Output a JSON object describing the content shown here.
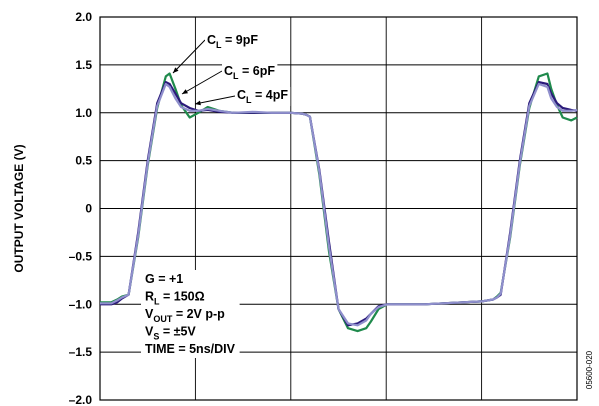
{
  "chart_data": {
    "type": "line",
    "ylabel": "OUTPUT VOLTAGE (V)",
    "xlabel": "",
    "ylim": [
      -2.0,
      2.0
    ],
    "xlim": [
      0,
      50
    ],
    "x_unit": "ns",
    "y_ticks": [
      "2.0",
      "1.5",
      "1.0",
      "0.5",
      "0",
      "–0.5",
      "–1.0",
      "–1.5",
      "–2.0"
    ],
    "y_tick_values": [
      2.0,
      1.5,
      1.0,
      0.5,
      0,
      -0.5,
      -1.0,
      -1.5,
      -2.0
    ],
    "grid": true,
    "conditions": [
      {
        "main": "G = +1",
        "sub": "",
        "rest": ""
      },
      {
        "main": "R",
        "sub": "L",
        "rest": " = 150Ω"
      },
      {
        "main": "V",
        "sub": "OUT",
        "rest": " = 2V p-p"
      },
      {
        "main": "V",
        "sub": "S",
        "rest": " = ±5V"
      },
      {
        "main": "TIME = 5ns/DIV",
        "sub": "",
        "rest": ""
      }
    ],
    "annotations": [
      {
        "main": "C",
        "sub": "L",
        "rest": " = 9pF"
      },
      {
        "main": "C",
        "sub": "L",
        "rest": " = 6pF"
      },
      {
        "main": "C",
        "sub": "L",
        "rest": " = 4pF"
      }
    ],
    "figure_id": "05600-020",
    "series": [
      {
        "color": "#1f8a4c",
        "x": [
          0,
          1.2,
          1.8,
          2.3,
          3.0,
          4.0,
          5.0,
          6.0,
          6.9,
          7.3,
          7.9,
          8.5,
          9.4,
          10.3,
          11.3,
          12.5,
          14.0,
          16.0,
          18.0,
          20.0,
          21.2,
          21.6,
          22.0,
          23.0,
          24.0,
          25.0,
          26.0,
          27.0,
          27.9,
          28.4,
          29.2,
          30.1,
          31.0,
          32.0,
          34.0,
          36.0,
          38.0,
          40.0,
          41.2,
          41.6,
          42.0,
          43.0,
          44.0,
          45.0,
          46.0,
          46.9,
          47.3,
          47.9,
          48.5,
          49.4,
          50.0
        ],
        "y": [
          -0.98,
          -0.98,
          -0.95,
          -0.92,
          -0.9,
          -0.3,
          0.45,
          1.05,
          1.38,
          1.41,
          1.25,
          1.08,
          0.95,
          1.0,
          1.06,
          1.02,
          1.0,
          1.0,
          1.0,
          1.0,
          0.99,
          0.98,
          0.96,
          0.35,
          -0.45,
          -1.05,
          -1.25,
          -1.28,
          -1.25,
          -1.18,
          -1.05,
          -1.0,
          -1.0,
          -1.0,
          -1.0,
          -0.99,
          -0.98,
          -0.97,
          -0.95,
          -0.92,
          -0.88,
          -0.3,
          0.45,
          1.05,
          1.38,
          1.41,
          1.25,
          1.08,
          0.95,
          0.92,
          0.95
        ]
      },
      {
        "color": "#2b1a7a",
        "x": [
          0,
          1.2,
          1.8,
          2.3,
          3.0,
          4.0,
          5.0,
          6.0,
          6.9,
          7.3,
          7.9,
          8.5,
          9.4,
          10.3,
          11.3,
          12.5,
          14.0,
          16.0,
          18.0,
          20.0,
          21.2,
          21.6,
          22.0,
          23.0,
          24.0,
          25.0,
          26.0,
          27.0,
          27.9,
          28.4,
          29.2,
          30.1,
          31.0,
          32.0,
          34.0,
          36.0,
          38.0,
          40.0,
          41.2,
          41.6,
          42.0,
          43.0,
          44.0,
          45.0,
          46.0,
          46.9,
          47.3,
          47.9,
          48.5,
          49.4,
          50.0
        ],
        "y": [
          -1.0,
          -1.0,
          -0.98,
          -0.94,
          -0.9,
          -0.25,
          0.5,
          1.1,
          1.32,
          1.3,
          1.2,
          1.1,
          1.05,
          1.02,
          1.03,
          1.01,
          1.0,
          1.0,
          1.0,
          1.0,
          0.99,
          0.98,
          0.96,
          0.4,
          -0.35,
          -1.05,
          -1.22,
          -1.2,
          -1.15,
          -1.1,
          -1.02,
          -1.0,
          -1.0,
          -1.0,
          -1.0,
          -0.99,
          -0.98,
          -0.97,
          -0.95,
          -0.93,
          -0.9,
          -0.25,
          0.5,
          1.1,
          1.32,
          1.3,
          1.2,
          1.1,
          1.05,
          1.03,
          1.02
        ]
      },
      {
        "color": "#8f8fcc",
        "x": [
          0,
          1.2,
          1.8,
          2.3,
          3.0,
          4.0,
          5.0,
          6.0,
          6.9,
          7.3,
          7.9,
          8.5,
          9.4,
          10.3,
          11.3,
          12.5,
          14.0,
          16.0,
          18.0,
          20.0,
          21.2,
          21.6,
          22.0,
          23.0,
          24.0,
          25.0,
          26.0,
          27.0,
          27.9,
          28.4,
          29.2,
          30.1,
          31.0,
          32.0,
          34.0,
          36.0,
          38.0,
          40.0,
          41.2,
          41.6,
          42.0,
          43.0,
          44.0,
          45.0,
          46.0,
          46.9,
          47.3,
          47.9,
          48.5,
          49.4,
          50.0
        ],
        "y": [
          -0.99,
          -0.99,
          -0.96,
          -0.93,
          -0.9,
          -0.28,
          0.47,
          1.07,
          1.3,
          1.27,
          1.15,
          1.06,
          1.02,
          1.02,
          1.04,
          1.02,
          1.0,
          1.01,
          1.0,
          1.0,
          0.99,
          0.98,
          0.96,
          0.38,
          -0.4,
          -1.05,
          -1.2,
          -1.22,
          -1.17,
          -1.1,
          -1.03,
          -1.0,
          -1.0,
          -1.0,
          -1.0,
          -0.99,
          -0.98,
          -0.97,
          -0.95,
          -0.93,
          -0.89,
          -0.28,
          0.47,
          1.07,
          1.3,
          1.27,
          1.15,
          1.06,
          1.02,
          1.02,
          1.03
        ]
      }
    ]
  }
}
